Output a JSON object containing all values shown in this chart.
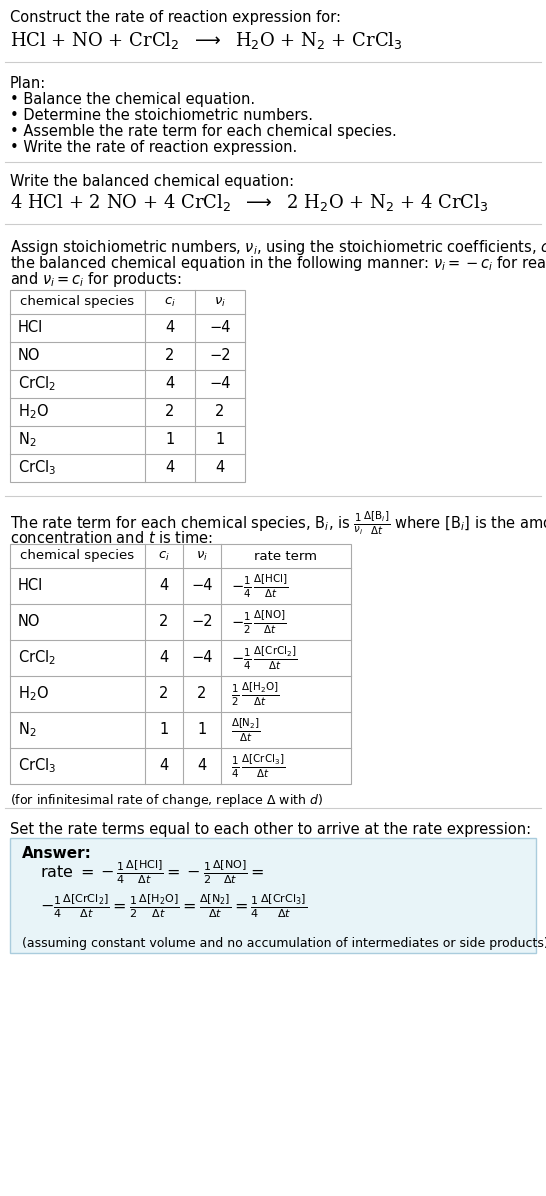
{
  "bg_color": "#ffffff",
  "text_color": "#000000",
  "title_line1": "Construct the rate of reaction expression for:",
  "plan_header": "Plan:",
  "plan_items": [
    "• Balance the chemical equation.",
    "• Determine the stoichiometric numbers.",
    "• Assemble the rate term for each chemical species.",
    "• Write the rate of reaction expression."
  ],
  "balanced_header": "Write the balanced chemical equation:",
  "stoich_text": [
    "Assign stoichiometric numbers, $\\nu_i$, using the stoichiometric coefficients, $c_i$, from",
    "the balanced chemical equation in the following manner: $\\nu_i = -c_i$ for reactants",
    "and $\\nu_i = c_i$ for products:"
  ],
  "rate_text1": "The rate term for each chemical species, B$_i$, is $\\frac{1}{\\nu_i}\\frac{\\Delta[\\mathrm{B}_i]}{\\Delta t}$ where [B$_i$] is the amount",
  "rate_text2": "concentration and $t$ is time:",
  "infinitesimal_note": "(for infinitesimal rate of change, replace Δ with $d$)",
  "set_rate_header": "Set the rate terms equal to each other to arrive at the rate expression:",
  "answer_label": "Answer:",
  "answer_note": "(assuming constant volume and no accumulation of intermediates or side products)",
  "answer_box_bg": "#e8f4f8",
  "answer_box_border": "#aaccdd",
  "separator_color": "#cccccc",
  "table_border_color": "#aaaaaa"
}
